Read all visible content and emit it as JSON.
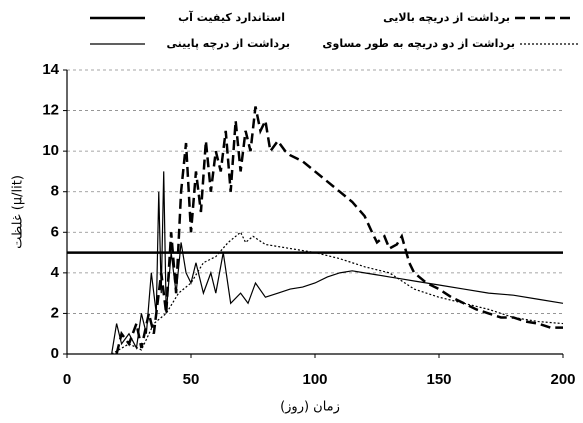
{
  "chart_data": {
    "type": "line",
    "x_label": "زمان (روز)",
    "y_label": "غلظت (μ/lit)",
    "xlim": [
      0,
      200
    ],
    "xticks": [
      0,
      50,
      100,
      150,
      200
    ],
    "ylim": [
      0,
      14
    ],
    "yticks": [
      0,
      2,
      4,
      6,
      8,
      10,
      12,
      14
    ],
    "grid": true,
    "legend": "top",
    "series": [
      {
        "name": "استاندارد کیفیت آب",
        "color": "#000000",
        "style": "solid",
        "width": 2.5,
        "x": [
          0,
          200
        ],
        "values": [
          5,
          5
        ]
      },
      {
        "name": "برداشت از دریچه بالایی",
        "color": "#000000",
        "style": "dashed",
        "width": 2.5,
        "x": [
          20,
          22,
          25,
          28,
          30,
          33,
          35,
          38,
          40,
          42,
          44,
          46,
          48,
          50,
          52,
          54,
          56,
          58,
          60,
          62,
          64,
          66,
          68,
          70,
          72,
          74,
          76,
          78,
          80,
          82,
          85,
          88,
          90,
          95,
          100,
          105,
          110,
          115,
          120,
          123,
          125,
          128,
          130,
          133,
          135,
          138,
          140,
          145,
          150,
          155,
          160,
          165,
          170,
          175,
          180,
          185,
          190,
          195,
          200
        ],
        "values": [
          0,
          1,
          0.5,
          1.5,
          0.3,
          2,
          1,
          4,
          2,
          6,
          3,
          8,
          10.4,
          6,
          9,
          7,
          10.5,
          8,
          10,
          9,
          11,
          8,
          11.5,
          9,
          11,
          10,
          12.2,
          11,
          11.5,
          10,
          10.5,
          10,
          9.8,
          9.5,
          9,
          8.5,
          8,
          7.5,
          6.8,
          6,
          5.5,
          5.8,
          5.2,
          5.4,
          5.8,
          4.5,
          4,
          3.5,
          3.2,
          2.8,
          2.5,
          2.2,
          2,
          1.8,
          1.8,
          1.6,
          1.5,
          1.3,
          1.3
        ]
      },
      {
        "name": "برداشت از درچه پایینی",
        "color": "#000000",
        "style": "solid",
        "width": 1.2,
        "x": [
          18,
          20,
          22,
          25,
          28,
          30,
          32,
          34,
          36,
          37,
          38,
          39,
          40,
          42,
          44,
          46,
          48,
          50,
          52,
          55,
          58,
          60,
          63,
          66,
          70,
          73,
          76,
          80,
          85,
          90,
          95,
          100,
          105,
          110,
          115,
          120,
          125,
          130,
          135,
          140,
          145,
          150,
          160,
          170,
          180,
          190,
          200
        ],
        "values": [
          0,
          1.5,
          0.5,
          1,
          0.3,
          2,
          1,
          4,
          2,
          8,
          3,
          9,
          2,
          5,
          3,
          5.5,
          4,
          3.5,
          4.5,
          3,
          4,
          3,
          5,
          2.5,
          3,
          2.5,
          3.5,
          2.8,
          3,
          3.2,
          3.3,
          3.5,
          3.8,
          4,
          4.1,
          4,
          3.9,
          3.8,
          3.7,
          3.6,
          3.5,
          3.4,
          3.2,
          3,
          2.9,
          2.7,
          2.5
        ]
      },
      {
        "name": "برداشت از دو دریچه به طور مساوی",
        "color": "#000000",
        "style": "dotted",
        "width": 1.2,
        "x": [
          18,
          25,
          30,
          35,
          40,
          45,
          50,
          55,
          60,
          65,
          70,
          72,
          75,
          80,
          90,
          100,
          110,
          120,
          130,
          140,
          150,
          160,
          170,
          180,
          190,
          200
        ],
        "values": [
          0,
          0.5,
          0.2,
          1.5,
          2,
          3,
          3.5,
          4.5,
          4.8,
          5.5,
          6,
          5.5,
          5.8,
          5.4,
          5.2,
          5,
          4.7,
          4.3,
          4,
          3.2,
          2.8,
          2.5,
          2.2,
          1.8,
          1.6,
          1.5
        ]
      }
    ]
  }
}
